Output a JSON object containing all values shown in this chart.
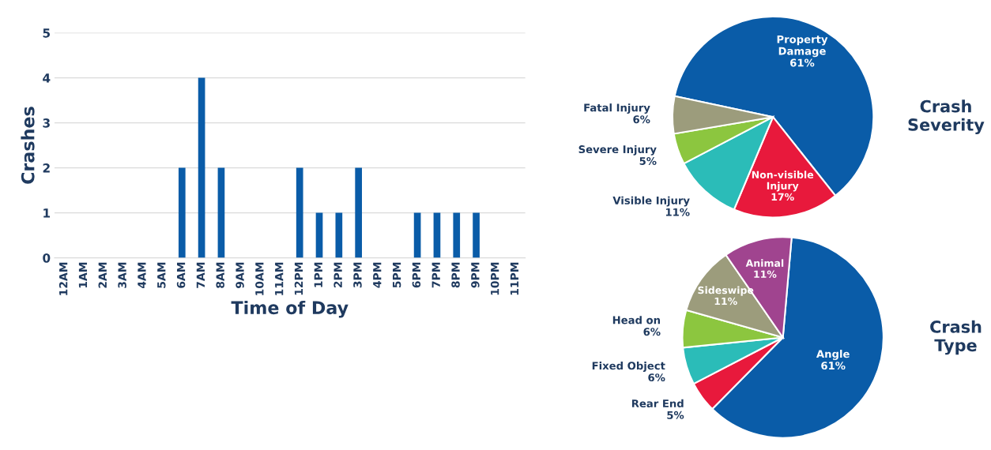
{
  "chart_data": [
    {
      "type": "bar",
      "xlabel": "Time of Day",
      "ylabel": "Crashes",
      "categories": [
        "12AM",
        "1AM",
        "2AM",
        "3AM",
        "4AM",
        "5AM",
        "6AM",
        "7AM",
        "8AM",
        "9AM",
        "10AM",
        "11AM",
        "12PM",
        "1PM",
        "2PM",
        "3PM",
        "4PM",
        "5PM",
        "6PM",
        "7PM",
        "8PM",
        "9PM",
        "10PM",
        "11PM"
      ],
      "values": [
        0,
        0,
        0,
        0,
        0,
        0,
        2,
        4,
        2,
        0,
        0,
        0,
        2,
        1,
        1,
        2,
        0,
        0,
        1,
        1,
        1,
        1,
        0,
        0
      ],
      "color": "#0a5ca8",
      "ylim": [
        0,
        5
      ],
      "yticks": [
        0,
        1,
        2,
        3,
        4,
        5
      ],
      "grid": "y"
    },
    {
      "type": "pie",
      "title": "Crash Severity",
      "categories": [
        "Property Damage",
        "Non-visible Injury",
        "Visible Injury",
        "Severe Injury",
        "Fatal Injury"
      ],
      "values": [
        61,
        17,
        11,
        5,
        6
      ],
      "value_labels": [
        "61%",
        "17%",
        "11%",
        "5%",
        "6%"
      ],
      "colors": [
        "#0a5ca8",
        "#e8193c",
        "#2bbcb8",
        "#8cc63f",
        "#9c9c7c"
      ]
    },
    {
      "type": "pie",
      "title": "Crash Type",
      "categories": [
        "Angle",
        "Rear End",
        "Fixed Object",
        "Head on",
        "Sideswipe",
        "Animal"
      ],
      "values": [
        61,
        5,
        6,
        6,
        11,
        11
      ],
      "value_labels": [
        "61%",
        "5%",
        "6%",
        "6%",
        "11%",
        "11%"
      ],
      "colors": [
        "#0a5ca8",
        "#e8193c",
        "#2bbcb8",
        "#8cc63f",
        "#9c9c7c",
        "#a0448f"
      ]
    }
  ]
}
